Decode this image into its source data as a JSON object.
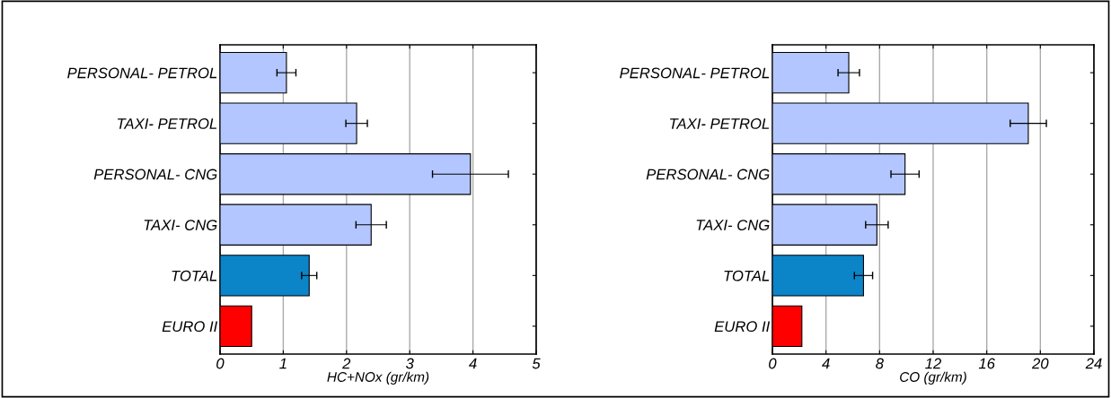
{
  "chart_data": [
    {
      "type": "bar",
      "orientation": "horizontal",
      "categories": [
        "PERSONAL- PETROL",
        "TAXI- PETROL",
        "PERSONAL- CNG",
        "TAXI- CNG",
        "TOTAL",
        "EURO II"
      ],
      "values": [
        1.05,
        2.16,
        3.96,
        2.39,
        1.41,
        0.5
      ],
      "colors": [
        "#b3c6ff",
        "#b3c6ff",
        "#b3c6ff",
        "#b3c6ff",
        "#0b84c8",
        "#ff0000"
      ],
      "errors": [
        0.15,
        0.17,
        0.6,
        0.24,
        0.12,
        null
      ],
      "xlabel": "HC+NOx (gr/km)",
      "xlim": [
        0,
        5
      ],
      "xticks": [
        0,
        1,
        2,
        3,
        4,
        5
      ],
      "grid": "x"
    },
    {
      "type": "bar",
      "orientation": "horizontal",
      "categories": [
        "PERSONAL- PETROL",
        "TAXI- PETROL",
        "PERSONAL- CNG",
        "TAXI- CNG",
        "TOTAL",
        "EURO II"
      ],
      "values": [
        5.7,
        19.1,
        9.9,
        7.8,
        6.8,
        2.2
      ],
      "colors": [
        "#b3c6ff",
        "#b3c6ff",
        "#b3c6ff",
        "#b3c6ff",
        "#0b84c8",
        "#ff0000"
      ],
      "errors": [
        0.8,
        1.35,
        1.05,
        0.84,
        0.68,
        null
      ],
      "xlabel": "CO (gr/km)",
      "xlim": [
        0,
        24
      ],
      "xticks": [
        0,
        4,
        8,
        12,
        16,
        20,
        24
      ],
      "grid": "x"
    }
  ]
}
